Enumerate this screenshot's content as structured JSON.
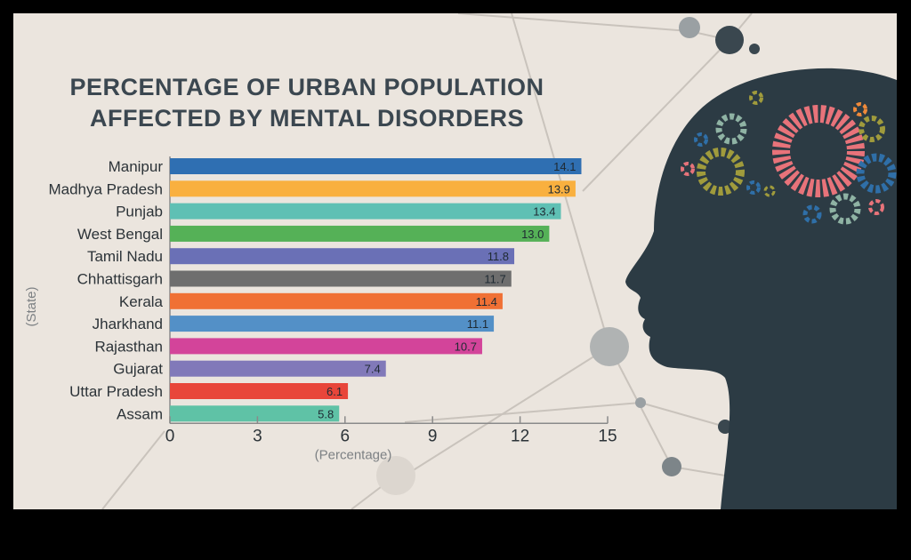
{
  "chart_data": {
    "type": "bar",
    "orientation": "horizontal",
    "title": "PERCENTAGE OF URBAN POPULATION AFFECTED BY MENTAL DISORDERS",
    "title_lines": [
      "PERCENTAGE OF URBAN POPULATION",
      "AFFECTED BY MENTAL DISORDERS"
    ],
    "xlabel": "(Percentage)",
    "ylabel": "(State)",
    "xlim": [
      0,
      15
    ],
    "xticks": [
      0,
      3,
      6,
      9,
      12,
      15
    ],
    "grid": false,
    "categories": [
      "Manipur",
      "Madhya Pradesh",
      "Punjab",
      "West Bengal",
      "Tamil Nadu",
      "Chhattisgarh",
      "Kerala",
      "Jharkhand",
      "Rajasthan",
      "Gujarat",
      "Uttar Pradesh",
      "Assam"
    ],
    "values": [
      14.1,
      13.9,
      13.4,
      13.0,
      11.8,
      11.7,
      11.4,
      11.1,
      10.7,
      7.4,
      6.1,
      5.8
    ],
    "value_labels": [
      "14.1",
      "13.9",
      "13.4",
      "13.0",
      "11.8",
      "11.7",
      "11.4",
      "11.1",
      "10.7",
      "7.4",
      "6.1",
      "5.8"
    ],
    "colors": [
      "#2f6fb2",
      "#f9b03f",
      "#5fc0b4",
      "#55b157",
      "#6a70b6",
      "#6e6e6e",
      "#f07034",
      "#5390c7",
      "#d3449a",
      "#8179b9",
      "#e8463a",
      "#5fc2a6"
    ]
  },
  "theme": {
    "background": "#ebe5de",
    "title_color": "#3b4750",
    "head_color": "#2c3b44"
  }
}
